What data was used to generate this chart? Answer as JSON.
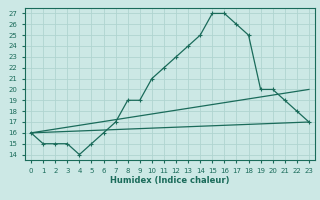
{
  "xlabel": "Humidex (Indice chaleur)",
  "ylabel": "",
  "bg_color": "#cce8e5",
  "line_color": "#1a6b5a",
  "grid_color": "#b0d4d0",
  "xlim": [
    -0.5,
    23.5
  ],
  "ylim": [
    13.5,
    27.5
  ],
  "xticks": [
    0,
    1,
    2,
    3,
    4,
    5,
    6,
    7,
    8,
    9,
    10,
    11,
    12,
    13,
    14,
    15,
    16,
    17,
    18,
    19,
    20,
    21,
    22,
    23
  ],
  "yticks": [
    14,
    15,
    16,
    17,
    18,
    19,
    20,
    21,
    22,
    23,
    24,
    25,
    26,
    27
  ],
  "main_x": [
    0,
    1,
    2,
    3,
    4,
    5,
    6,
    7,
    8,
    9,
    10,
    11,
    12,
    13,
    14,
    15,
    16,
    17,
    18,
    19,
    20,
    21,
    22,
    23
  ],
  "main_y": [
    16,
    15,
    15,
    15,
    14,
    15,
    16,
    17,
    19,
    19,
    21,
    22,
    23,
    24,
    25,
    27,
    27,
    26,
    25,
    20,
    20,
    19,
    18,
    17
  ],
  "line2_x": [
    0,
    23
  ],
  "line2_y": [
    16.0,
    20.0
  ],
  "line3_x": [
    0,
    23
  ],
  "line3_y": [
    16.0,
    17.0
  ]
}
